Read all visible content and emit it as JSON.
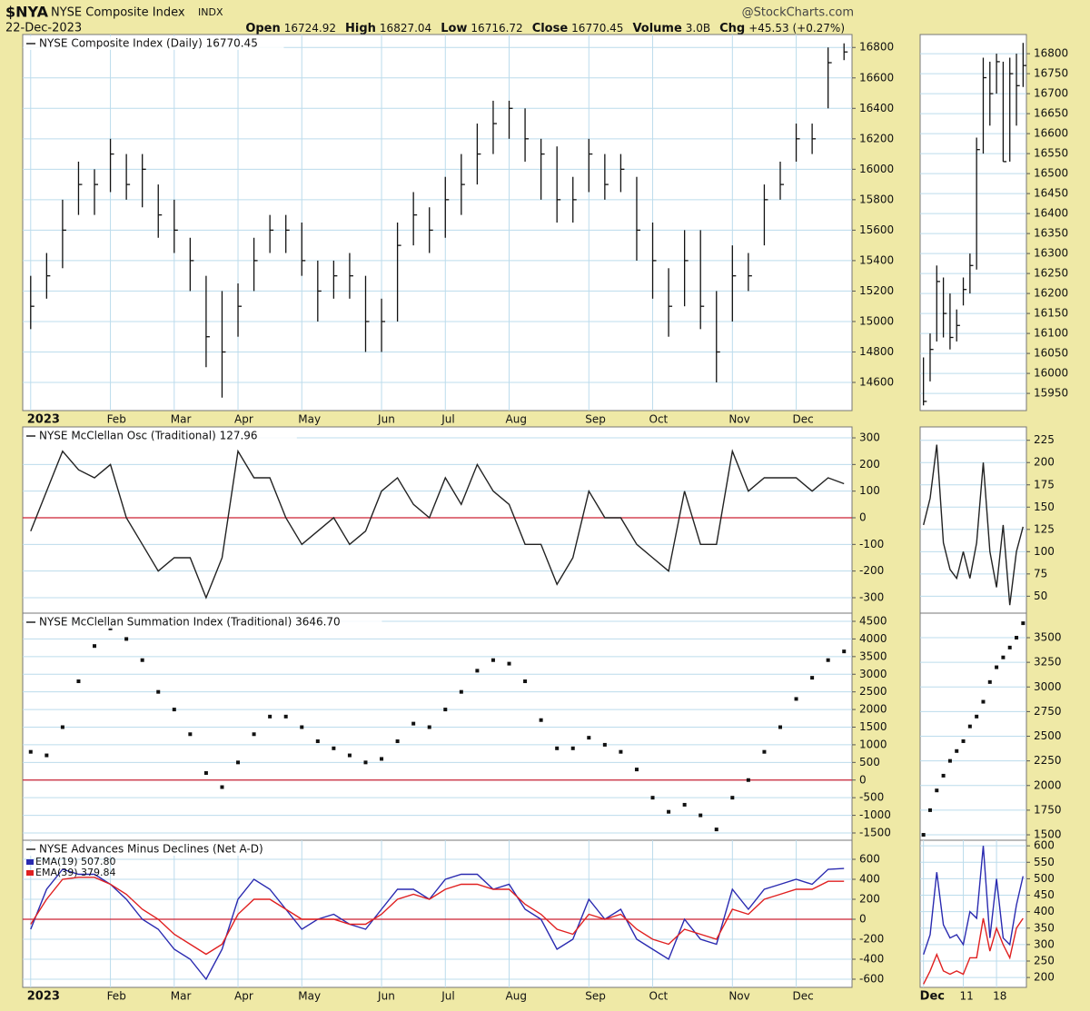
{
  "header": {
    "symbol": "$NYA",
    "name": "NYSE Composite Index",
    "exchange": "INDX",
    "date": "22-Dec-2023",
    "source": "@StockCharts.com",
    "quote": [
      {
        "label": "Open",
        "value": "16724.92"
      },
      {
        "label": "High",
        "value": "16827.04"
      },
      {
        "label": "Low",
        "value": "16716.72"
      },
      {
        "label": "Close",
        "value": "16770.45"
      },
      {
        "label": "Volume",
        "value": "3.0B"
      },
      {
        "label": "Chg",
        "value": "+45.53 (+0.27%)"
      }
    ]
  },
  "chart_data": [
    {
      "type": "hlc",
      "title": "NYSE Composite Index (Daily) 16770.45",
      "color": "#111111",
      "grid": true,
      "categories": [
        "2023",
        null,
        null,
        null,
        null,
        "Feb",
        null,
        null,
        null,
        "Mar",
        null,
        null,
        null,
        "Apr",
        null,
        null,
        null,
        "May",
        null,
        null,
        null,
        null,
        "Jun",
        null,
        null,
        null,
        "Jul",
        null,
        null,
        null,
        "Aug",
        null,
        null,
        null,
        null,
        "Sep",
        null,
        null,
        null,
        "Oct",
        null,
        null,
        null,
        null,
        "Nov",
        null,
        null,
        null,
        "Dec",
        null,
        null,
        null
      ],
      "high": [
        15300,
        15450,
        15800,
        16050,
        16000,
        16200,
        16100,
        16100,
        15900,
        15800,
        15550,
        15300,
        15200,
        15250,
        15550,
        15700,
        15700,
        15650,
        15400,
        15400,
        15450,
        15300,
        15150,
        15650,
        15850,
        15750,
        15950,
        16100,
        16300,
        16450,
        16450,
        16400,
        16200,
        16150,
        15950,
        16200,
        16100,
        16100,
        15950,
        15650,
        15350,
        15600,
        15600,
        15200,
        15500,
        15450,
        15900,
        16050,
        16300,
        16300,
        16800,
        16827.04
      ],
      "low": [
        14950,
        15150,
        15350,
        15700,
        15700,
        15850,
        15800,
        15750,
        15550,
        15450,
        15200,
        14700,
        14500,
        14900,
        15200,
        15450,
        15450,
        15300,
        15000,
        15150,
        15150,
        14800,
        14800,
        15000,
        15500,
        15450,
        15550,
        15700,
        15900,
        16100,
        16200,
        16050,
        15800,
        15650,
        15650,
        15850,
        15800,
        15850,
        15400,
        15150,
        14900,
        15100,
        14950,
        14600,
        15000,
        15200,
        15500,
        15800,
        16050,
        16100,
        16400,
        16716.72
      ],
      "close": [
        15100,
        15300,
        15600,
        15900,
        15900,
        16100,
        15900,
        16000,
        15700,
        15600,
        15400,
        14900,
        14800,
        15100,
        15400,
        15600,
        15600,
        15400,
        15200,
        15300,
        15300,
        15000,
        15000,
        15500,
        15700,
        15600,
        15800,
        15900,
        16100,
        16300,
        16400,
        16200,
        16100,
        15800,
        15800,
        16100,
        15900,
        16000,
        15600,
        15400,
        15100,
        15400,
        15100,
        14800,
        15300,
        15300,
        15800,
        15900,
        16200,
        16200,
        16700,
        16770.45
      ],
      "ylim": [
        14415,
        16885
      ],
      "yticks": [
        14600,
        14800,
        15000,
        15200,
        15400,
        15600,
        15800,
        16000,
        16200,
        16400,
        16600,
        16800
      ]
    },
    {
      "type": "line",
      "title": "NYSE McClellan Osc (Traditional) 127.96",
      "grid": true,
      "hline": 0,
      "hline_color": "#cc2233",
      "series": [
        {
          "color": "#222222",
          "values": [
            -50,
            100,
            250,
            180,
            150,
            200,
            0,
            -100,
            -200,
            -150,
            -150,
            -300,
            -150,
            250,
            150,
            150,
            0,
            -100,
            -50,
            0,
            -100,
            -50,
            100,
            150,
            50,
            0,
            150,
            50,
            200,
            100,
            50,
            -100,
            -100,
            -250,
            -150,
            100,
            0,
            0,
            -100,
            -150,
            -200,
            100,
            -100,
            -100,
            250,
            100,
            150,
            150,
            150,
            100,
            150,
            127.96
          ]
        }
      ],
      "ylim": [
        -358,
        341
      ],
      "yticks": [
        -300,
        -200,
        -100,
        0,
        100,
        200,
        300
      ]
    },
    {
      "type": "dots",
      "title": "NYSE McClellan Summation Index (Traditional) 3646.70",
      "grid": true,
      "hline": 0,
      "hline_color": "#cc2233",
      "series": [
        {
          "color": "#111111",
          "values": [
            800,
            700,
            1500,
            2800,
            3800,
            4300,
            4000,
            3400,
            2500,
            2000,
            1300,
            200,
            -200,
            500,
            1300,
            1800,
            1800,
            1500,
            1100,
            900,
            700,
            500,
            600,
            1100,
            1600,
            1500,
            2000,
            2500,
            3100,
            3400,
            3300,
            2800,
            1700,
            900,
            900,
            1200,
            1000,
            800,
            300,
            -500,
            -900,
            -700,
            -1000,
            -1400,
            -500,
            0,
            800,
            1500,
            2300,
            2900,
            3400,
            3646.7
          ]
        }
      ],
      "ylim": [
        -1706,
        4732
      ],
      "yticks": [
        -1500,
        -1000,
        -500,
        0,
        500,
        1000,
        1500,
        2000,
        2500,
        3000,
        3500,
        4000,
        4500
      ]
    },
    {
      "type": "line",
      "title": "NYSE Advances Minus Declines (Net A-D)",
      "grid": true,
      "hline": 0,
      "hline_color": "#cc2233",
      "categories": [
        "2023",
        null,
        null,
        null,
        null,
        "Feb",
        null,
        null,
        null,
        "Mar",
        null,
        null,
        null,
        "Apr",
        null,
        null,
        null,
        "May",
        null,
        null,
        null,
        null,
        "Jun",
        null,
        null,
        null,
        "Jul",
        null,
        null,
        null,
        "Aug",
        null,
        null,
        null,
        null,
        "Sep",
        null,
        null,
        null,
        "Oct",
        null,
        null,
        null,
        null,
        "Nov",
        null,
        null,
        null,
        "Dec",
        null,
        null,
        null
      ],
      "series": [
        {
          "name": "EMA(19) 507.80",
          "color": "#2a2ab0",
          "values": [
            -100,
            300,
            500,
            450,
            450,
            350,
            200,
            0,
            -100,
            -300,
            -400,
            -600,
            -300,
            200,
            400,
            300,
            100,
            -100,
            0,
            50,
            -50,
            -100,
            100,
            300,
            300,
            200,
            400,
            450,
            450,
            300,
            350,
            100,
            0,
            -300,
            -200,
            200,
            0,
            100,
            -200,
            -300,
            -400,
            0,
            -200,
            -250,
            300,
            100,
            300,
            350,
            400,
            350,
            500,
            507.8
          ]
        },
        {
          "name": "EMA(39) 379.84",
          "color": "#e02020",
          "values": [
            -50,
            200,
            400,
            420,
            420,
            350,
            250,
            100,
            0,
            -150,
            -250,
            -350,
            -250,
            50,
            200,
            200,
            100,
            0,
            0,
            0,
            -50,
            -50,
            50,
            200,
            250,
            200,
            300,
            350,
            350,
            300,
            300,
            150,
            50,
            -100,
            -150,
            50,
            0,
            50,
            -100,
            -200,
            -250,
            -100,
            -150,
            -200,
            100,
            50,
            200,
            250,
            300,
            300,
            380,
            379.84
          ]
        }
      ],
      "ylim": [
        -682,
        791
      ],
      "yticks": [
        -600,
        -400,
        -200,
        0,
        200,
        400,
        600
      ]
    },
    {
      "type": "hlc",
      "color": "#111111",
      "grid": true,
      "high": [
        16040,
        16100,
        16270,
        16240,
        16200,
        16160,
        16240,
        16300,
        16590,
        16790,
        16780,
        16800,
        16780,
        16790,
        16800,
        16827.04
      ],
      "low": [
        15920,
        15980,
        16080,
        16090,
        16060,
        16080,
        16170,
        16200,
        16260,
        16550,
        16620,
        16700,
        16530,
        16530,
        16620,
        16716.72
      ],
      "close": [
        15930,
        16060,
        16230,
        16150,
        16090,
        16120,
        16210,
        16270,
        16560,
        16740,
        16700,
        16780,
        16530,
        16750,
        16720,
        16770.45
      ],
      "ylim": [
        15907,
        16848
      ],
      "yticks": [
        15950,
        16000,
        16050,
        16100,
        16150,
        16200,
        16250,
        16300,
        16350,
        16400,
        16450,
        16500,
        16550,
        16600,
        16650,
        16700,
        16750,
        16800
      ]
    },
    {
      "type": "line",
      "grid": true,
      "series": [
        {
          "color": "#222222",
          "values": [
            130,
            160,
            220,
            110,
            80,
            70,
            100,
            70,
            110,
            200,
            100,
            60,
            130,
            40,
            100,
            127.96
          ]
        }
      ],
      "ylim": [
        31,
        240
      ],
      "yticks": [
        50,
        75,
        100,
        125,
        150,
        175,
        200,
        225
      ]
    },
    {
      "type": "dots",
      "grid": true,
      "series": [
        {
          "color": "#111111",
          "values": [
            1500,
            1750,
            1950,
            2100,
            2250,
            2350,
            2450,
            2600,
            2700,
            2850,
            3050,
            3200,
            3300,
            3400,
            3500,
            3646.7
          ]
        }
      ],
      "ylim": [
        1445,
        3749
      ],
      "yticks": [
        1500,
        1750,
        2000,
        2250,
        2500,
        2750,
        3000,
        3250,
        3500
      ]
    },
    {
      "type": "line",
      "grid": true,
      "categories": [
        "Dec",
        null,
        null,
        null,
        null,
        null,
        "11",
        null,
        null,
        null,
        null,
        "18",
        null,
        null,
        null,
        null
      ],
      "series": [
        {
          "color": "#2a2ab0",
          "values": [
            270,
            330,
            520,
            360,
            320,
            330,
            300,
            400,
            380,
            600,
            320,
            500,
            320,
            300,
            420,
            507.8
          ]
        },
        {
          "color": "#e02020",
          "values": [
            180,
            220,
            270,
            220,
            210,
            220,
            210,
            260,
            260,
            380,
            280,
            350,
            300,
            260,
            350,
            379.84
          ]
        }
      ],
      "ylim": [
        170,
        617
      ],
      "yticks": [
        200,
        250,
        300,
        350,
        400,
        450,
        500,
        550,
        600
      ]
    }
  ]
}
